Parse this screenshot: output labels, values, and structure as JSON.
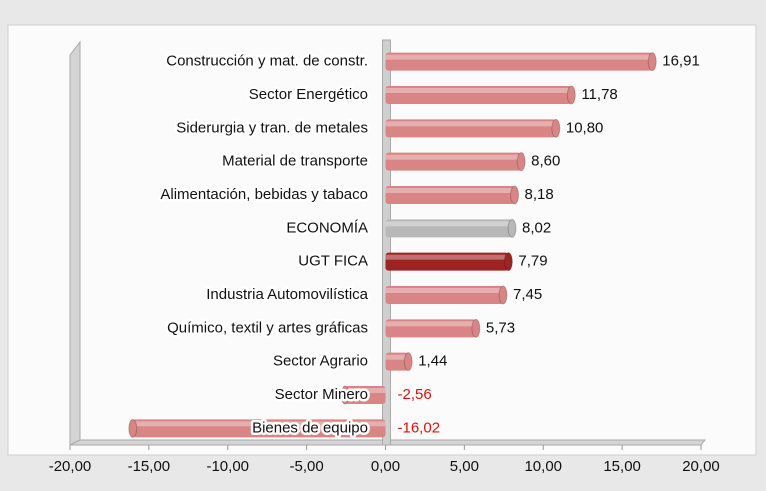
{
  "chart_data": {
    "type": "bar",
    "orientation": "horizontal",
    "categories": [
      "Construcción y mat. de constr.",
      "Sector Energético",
      "Siderurgia y tran. de metales",
      "Material de transporte",
      "Alimentación, bebidas y tabaco",
      "ECONOMÍA",
      "UGT FICA",
      "Industria Automovilística",
      "Químico, textil y artes gráficas",
      "Sector Agrario",
      "Sector Minero",
      "Bienes de equipo"
    ],
    "values": [
      16.91,
      11.78,
      10.8,
      8.6,
      8.18,
      8.02,
      7.79,
      7.45,
      5.73,
      1.44,
      -2.56,
      -16.02
    ],
    "value_labels": [
      "16,91",
      "11,78",
      "10,80",
      "8,60",
      "8,18",
      "8,02",
      "7,79",
      "7,45",
      "5,73",
      "1,44",
      "-2,56",
      "-16,02"
    ],
    "colors": [
      "#d98585",
      "#d98585",
      "#d98585",
      "#d98585",
      "#d98585",
      "#b8b8b8",
      "#9e2424",
      "#d98585",
      "#d98585",
      "#d98585",
      "#d98585",
      "#d98585"
    ],
    "negative_label_color": "#e01010",
    "xlim": [
      -20,
      20
    ],
    "xticks": [
      {
        "value": -20,
        "label": "-20,00"
      },
      {
        "value": -15,
        "label": "-15,00"
      },
      {
        "value": -10,
        "label": "-10,00"
      },
      {
        "value": -5,
        "label": "-5,00"
      },
      {
        "value": 0,
        "label": "0,00"
      },
      {
        "value": 5,
        "label": "5,00"
      },
      {
        "value": 10,
        "label": "10,00"
      },
      {
        "value": 15,
        "label": "15,00"
      },
      {
        "value": 20,
        "label": "20,00"
      }
    ]
  }
}
